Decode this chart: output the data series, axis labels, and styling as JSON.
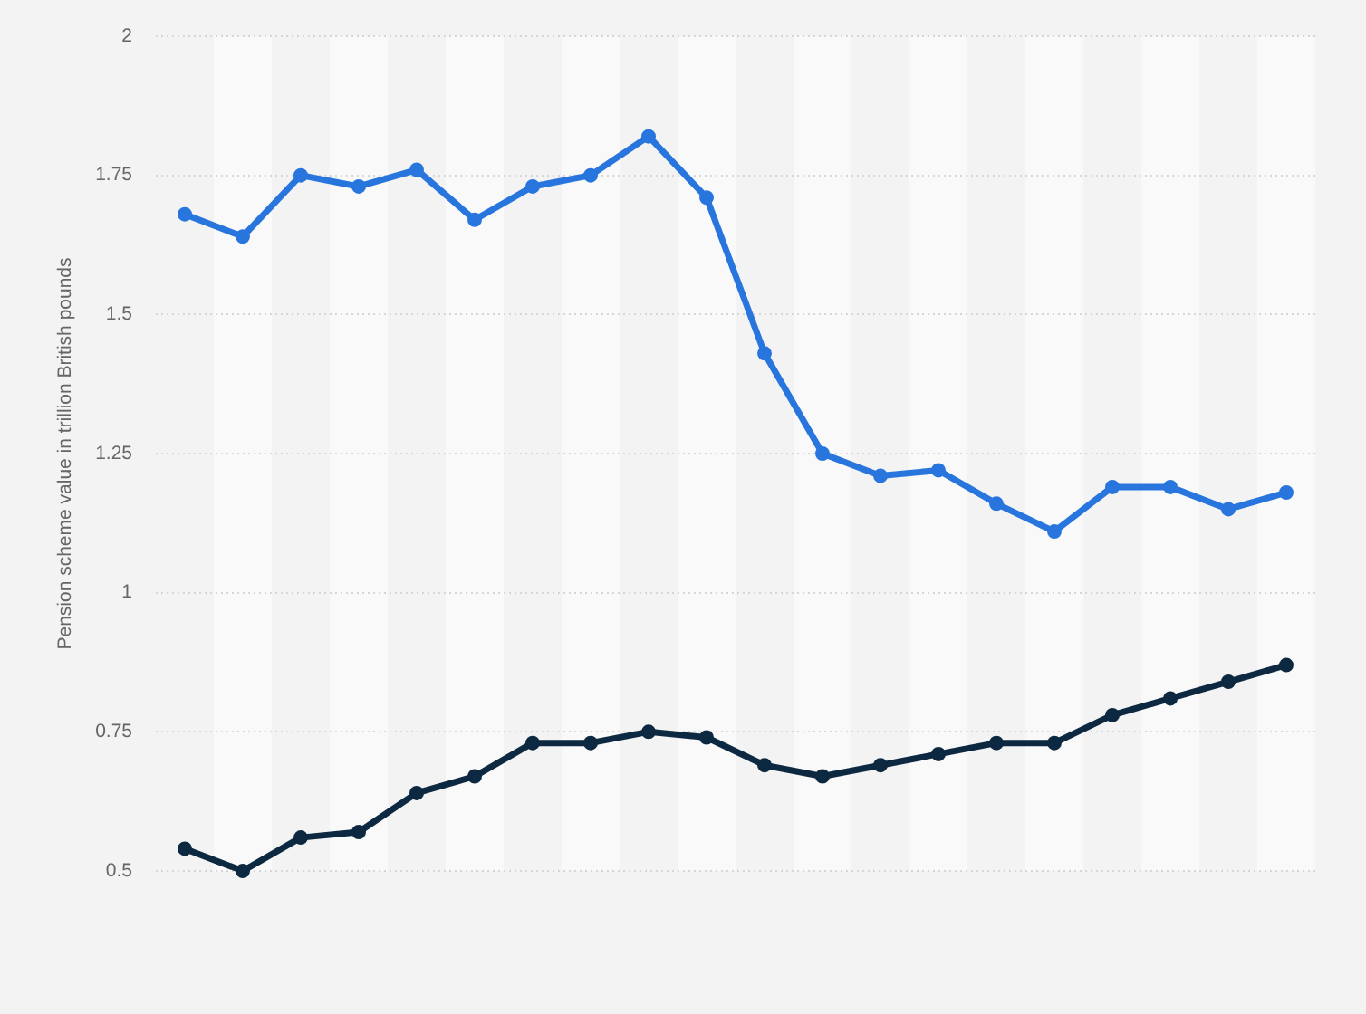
{
  "chart_data": {
    "type": "line",
    "ylabel": "Pension scheme value in trillion British pounds",
    "categories": [
      null,
      null,
      null,
      null,
      null,
      null,
      null,
      null,
      null,
      null,
      null,
      null,
      null,
      null,
      null,
      null,
      null,
      null,
      null,
      null
    ],
    "series": [
      {
        "color": "#2876dd",
        "values": [
          1.68,
          1.64,
          1.75,
          1.73,
          1.76,
          1.67,
          1.73,
          1.75,
          1.82,
          1.71,
          1.43,
          1.25,
          1.21,
          1.22,
          1.16,
          1.11,
          1.19,
          1.19,
          1.15,
          1.18
        ]
      },
      {
        "color": "#0d2841",
        "values": [
          0.54,
          0.5,
          0.56,
          0.57,
          0.64,
          0.67,
          0.73,
          0.73,
          0.75,
          0.74,
          0.69,
          0.67,
          0.69,
          0.71,
          0.73,
          0.73,
          0.78,
          0.81,
          0.84,
          0.87
        ]
      }
    ],
    "ylim": [
      0.5,
      2
    ],
    "yticks": [
      0.5,
      0.75,
      1,
      1.25,
      1.5,
      1.75,
      2
    ],
    "grid": "y",
    "marker": "circle",
    "line_style": "solid"
  }
}
